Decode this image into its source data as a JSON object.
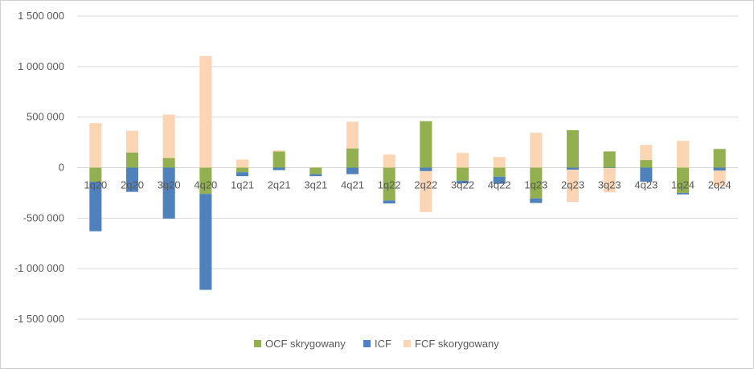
{
  "chart_data": {
    "type": "bar",
    "stacked": true,
    "title": "",
    "xlabel": "",
    "ylabel": "",
    "ylim": [
      -1500000,
      1500000
    ],
    "y_ticks": [
      1500000,
      1000000,
      500000,
      0,
      -500000,
      -1000000,
      -1500000
    ],
    "y_tick_labels": [
      "1 500 000",
      "1 000 000",
      "500 000",
      "0",
      "-500 000",
      "-1 000 000",
      "-1 500 000"
    ],
    "grid": true,
    "legend_position": "bottom",
    "categories": [
      "1q20",
      "2q20",
      "3q20",
      "4q20",
      "1q21",
      "2q21",
      "3q21",
      "4q21",
      "1q22",
      "2q22",
      "3q22",
      "4q22",
      "1q23",
      "2q23",
      "3q23",
      "4q23",
      "1q24",
      "2q24"
    ],
    "series": [
      {
        "name": "OCF skrygowany",
        "color": "#92b050",
        "values": [
          -140000,
          150000,
          95000,
          -260000,
          -45000,
          160000,
          -65000,
          190000,
          -325000,
          460000,
          -130000,
          -90000,
          -305000,
          370000,
          160000,
          75000,
          -250000,
          185000
        ]
      },
      {
        "name": "ICF",
        "color": "#4f81bd",
        "values": [
          -490000,
          -240000,
          -505000,
          -950000,
          -40000,
          -25000,
          -20000,
          -65000,
          -30000,
          -35000,
          -25000,
          -70000,
          -45000,
          -20000,
          -5000,
          -140000,
          -15000,
          -30000
        ]
      },
      {
        "name": "FCF skorygowany",
        "color": "#fcd5b5",
        "values": [
          440000,
          215000,
          430000,
          1105000,
          80000,
          10000,
          5000,
          265000,
          130000,
          -405000,
          145000,
          105000,
          345000,
          -320000,
          -240000,
          150000,
          265000,
          -150000
        ]
      }
    ]
  }
}
